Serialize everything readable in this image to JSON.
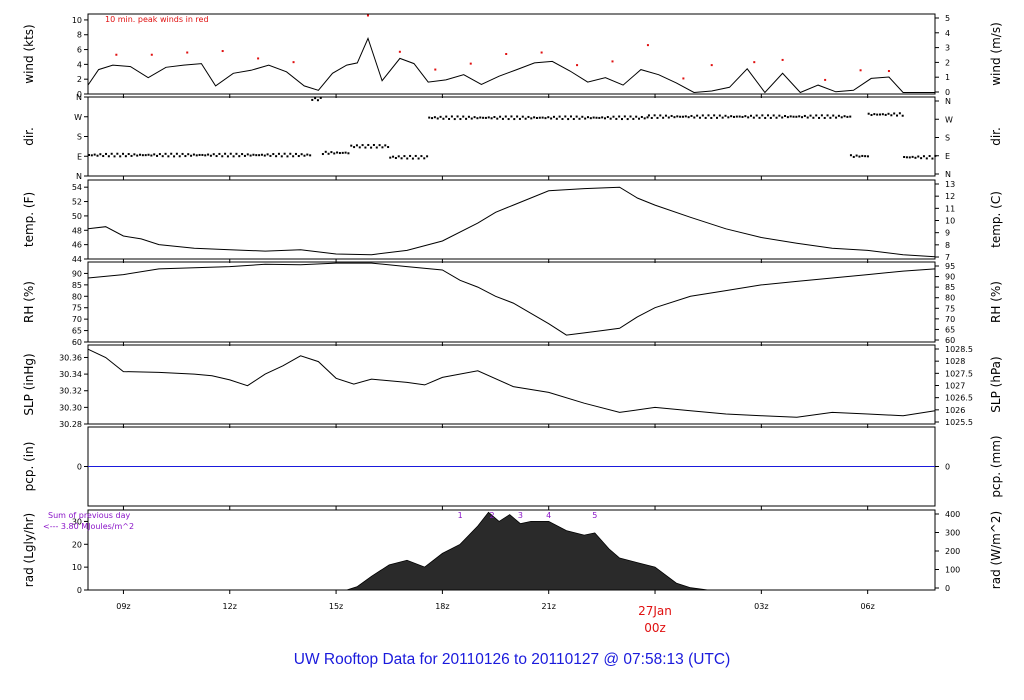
{
  "colors": {
    "title": "#1a1adc",
    "peak": "#e01010",
    "rain": "#1a1adc",
    "annotation": "#8a14c8",
    "date_label": "#e01010",
    "line": "#000000"
  },
  "footer": {
    "title": "UW Rooftop Data for 20110126  to  20110127 @ 07:58:13  (UTC)"
  },
  "annotations": {
    "wind_note": "10 min. peak winds in red",
    "rad_note_1": "Sum of previous day",
    "rad_note_2": "<--- 3.80 MJoules/m^2",
    "rad_hours": [
      "1",
      "2",
      "3",
      "4",
      "5"
    ]
  },
  "time_axis": {
    "ticks": [
      "09z",
      "12z",
      "15z",
      "18z",
      "21z",
      "00z",
      "03z",
      "06z"
    ],
    "date_label_1": "27Jan",
    "date_label_2": "00z"
  },
  "chart_data": [
    {
      "type": "line",
      "name": "wind",
      "ylabel": "wind (kts)",
      "ylabel_right": "wind (m/s)",
      "ylim": [
        0,
        10.8
      ],
      "yticks": [
        "0",
        "2",
        "4",
        "6",
        "8",
        "10"
      ],
      "yticks_right": [
        "0",
        "1",
        "2",
        "3",
        "4",
        "5"
      ],
      "x_hours": [
        8,
        8.3,
        8.7,
        9.2,
        9.7,
        10.2,
        10.7,
        11.2,
        11.6,
        12.1,
        12.6,
        13.1,
        13.6,
        14.1,
        14.5,
        14.9,
        15.3,
        15.6,
        15.9,
        16.3,
        16.8,
        17.2,
        17.6,
        18.1,
        18.6,
        19.1,
        19.6,
        20.1,
        20.6,
        21.1,
        21.6,
        22.1,
        22.6,
        23.1,
        23.6,
        24.1,
        24.6,
        25.1,
        25.6,
        26.1,
        26.6,
        27.1,
        27.6,
        28.1,
        28.6,
        29.1,
        29.6,
        30.1,
        30.6,
        31,
        31.9
      ],
      "values": [
        1.2,
        3.3,
        3.9,
        3.7,
        2.2,
        3.6,
        3.9,
        4.1,
        1.1,
        2.8,
        3.2,
        3.9,
        3.0,
        1.1,
        0.5,
        2.8,
        3.9,
        4.2,
        7.5,
        1.8,
        4.8,
        4.1,
        1.6,
        1.9,
        2.6,
        1.3,
        2.4,
        3.3,
        4.2,
        4.4,
        3.1,
        1.6,
        2.2,
        1.2,
        3.3,
        2.6,
        1.5,
        0.2,
        0.4,
        0.9,
        3.4,
        0.2,
        2.8,
        0.2,
        1.2,
        0.3,
        0.5,
        2.1,
        2.3,
        0.2,
        0.2
      ],
      "peaks_x": [
        8.8,
        9.8,
        10.8,
        11.8,
        12.8,
        13.8,
        15.9,
        16.8,
        17.8,
        18.8,
        19.8,
        20.8,
        21.8,
        22.8,
        23.8,
        24.8,
        25.6,
        26.8,
        27.6,
        28.8,
        29.8,
        30.6
      ],
      "peaks_y": [
        5.3,
        5.3,
        5.6,
        5.8,
        4.8,
        4.3,
        10.6,
        5.7,
        3.3,
        4.1,
        5.4,
        5.6,
        3.9,
        4.4,
        6.6,
        2.1,
        3.9,
        4.3,
        4.6,
        1.9,
        3.2,
        3.1
      ]
    },
    {
      "type": "scatter",
      "name": "dir",
      "ylabel": "dir.",
      "ylabel_right": "dir.",
      "ylim": [
        0,
        360
      ],
      "yticks": [
        "N",
        "E",
        "S",
        "W",
        "N"
      ],
      "yticks_right": [
        "N",
        "E",
        "S",
        "W",
        "N"
      ],
      "segments": [
        {
          "from": 8.0,
          "to": 14.3,
          "value": 100
        },
        {
          "from": 14.3,
          "to": 14.6,
          "value": 355
        },
        {
          "from": 14.6,
          "to": 15.4,
          "value": 110
        },
        {
          "from": 15.4,
          "to": 16.5,
          "value": 140
        },
        {
          "from": 16.5,
          "to": 17.6,
          "value": 90
        },
        {
          "from": 17.6,
          "to": 23.8,
          "value": 270
        },
        {
          "from": 23.8,
          "to": 29.5,
          "value": 275
        },
        {
          "from": 29.5,
          "to": 30.0,
          "value": 95
        },
        {
          "from": 30.0,
          "to": 31.0,
          "value": 285
        },
        {
          "from": 31.0,
          "to": 31.9,
          "value": 90
        }
      ]
    },
    {
      "type": "line",
      "name": "temp",
      "ylabel": "temp. (F)",
      "ylabel_right": "temp. (C)",
      "ylim": [
        44,
        55
      ],
      "yticks": [
        "44",
        "46",
        "48",
        "50",
        "52",
        "54"
      ],
      "yticks_right": [
        "7",
        "8",
        "9",
        "10",
        "11",
        "12",
        "13"
      ],
      "x_hours": [
        8,
        8.5,
        9,
        9.5,
        10,
        11,
        12,
        13,
        14,
        15,
        16,
        17,
        18,
        19,
        19.5,
        20,
        21,
        22,
        23,
        23.5,
        24,
        25,
        26,
        27,
        28,
        29,
        30,
        31,
        31.9
      ],
      "values": [
        48.2,
        48.5,
        47.2,
        46.8,
        46.0,
        45.5,
        45.3,
        45.1,
        45.3,
        44.7,
        44.6,
        45.2,
        46.5,
        49.0,
        50.5,
        51.5,
        53.5,
        53.8,
        54.0,
        52.5,
        51.5,
        49.8,
        48.2,
        47.0,
        46.2,
        45.5,
        45.2,
        44.6,
        44.3
      ]
    },
    {
      "type": "line",
      "name": "RH",
      "ylabel": "RH (%)",
      "ylabel_right": "RH (%)",
      "ylim": [
        60,
        95
      ],
      "yticks": [
        "60",
        "65",
        "70",
        "75",
        "80",
        "85",
        "90"
      ],
      "yticks_right": [
        "60",
        "65",
        "70",
        "75",
        "80",
        "85",
        "90",
        "95"
      ],
      "x_hours": [
        8,
        9,
        10,
        11,
        12,
        13,
        14,
        15,
        16,
        17,
        18,
        18.5,
        19,
        19.5,
        20,
        21,
        21.5,
        22,
        22.5,
        23,
        23.5,
        24,
        25,
        26,
        27,
        28,
        29,
        30,
        31,
        31.9
      ],
      "values": [
        88.0,
        89.5,
        92.0,
        92.5,
        93.0,
        94.0,
        93.8,
        94.5,
        94.5,
        93.0,
        91.5,
        87.0,
        84.0,
        80.0,
        77.0,
        68.0,
        63.0,
        64.0,
        65.0,
        66.0,
        71.0,
        75.0,
        80.0,
        82.5,
        85.0,
        86.5,
        88.0,
        89.5,
        91.0,
        92.0
      ]
    },
    {
      "type": "line",
      "name": "SLP",
      "ylabel": "SLP (inHg)",
      "ylabel_right": "SLP (hPa)",
      "ylim": [
        30.28,
        30.375
      ],
      "yticks": [
        "30.28",
        "30.30",
        "30.32",
        "30.34",
        "30.36"
      ],
      "yticks_right": [
        "1025.5",
        "1026",
        "1026.5",
        "1027",
        "1027.5",
        "1028",
        "1028.5"
      ],
      "x_hours": [
        8,
        8.5,
        9,
        10,
        11,
        11.5,
        12,
        12.5,
        13,
        13.5,
        14,
        14.5,
        15,
        15.5,
        16,
        17,
        17.5,
        18,
        19,
        20,
        21,
        22,
        23,
        24,
        25,
        26,
        27,
        28,
        29,
        30,
        31,
        31.9
      ],
      "values": [
        30.37,
        30.36,
        30.343,
        30.342,
        30.34,
        30.338,
        30.333,
        30.326,
        30.34,
        30.35,
        30.362,
        30.355,
        30.335,
        30.328,
        30.334,
        30.33,
        30.327,
        30.336,
        30.344,
        30.325,
        30.318,
        30.305,
        30.294,
        30.3,
        30.296,
        30.292,
        30.29,
        30.288,
        30.294,
        30.292,
        30.29,
        30.296
      ]
    },
    {
      "type": "line",
      "name": "pcp",
      "ylabel": "pcp. (in)",
      "ylabel_right": "pcp. (mm)",
      "ylim": [
        -1,
        1
      ],
      "yticks": [
        "0"
      ],
      "yticks_right": [
        "0"
      ],
      "x_hours": [
        8,
        31.9
      ],
      "values": [
        0,
        0
      ]
    },
    {
      "type": "area",
      "name": "rad",
      "ylabel": "rad (Lgly/hr)",
      "ylabel_right": "rad (W/m^2)",
      "ylim": [
        0,
        35
      ],
      "yticks": [
        "0",
        "10",
        "20",
        "30"
      ],
      "yticks_right": [
        "0",
        "100",
        "200",
        "300",
        "400"
      ],
      "x_hours": [
        15.3,
        15.6,
        16.0,
        16.5,
        17.0,
        17.5,
        18.0,
        18.5,
        19.0,
        19.3,
        19.6,
        19.9,
        20.2,
        20.5,
        21.0,
        21.5,
        22.0,
        22.3,
        22.7,
        23.0,
        23.5,
        24.0,
        24.6,
        25.0,
        25.5
      ],
      "values": [
        0,
        1.5,
        6,
        11,
        13,
        10,
        16,
        20,
        28,
        34,
        30,
        33,
        29,
        30,
        30,
        26,
        24,
        25,
        18,
        14,
        12,
        10,
        3,
        1,
        0
      ]
    }
  ]
}
